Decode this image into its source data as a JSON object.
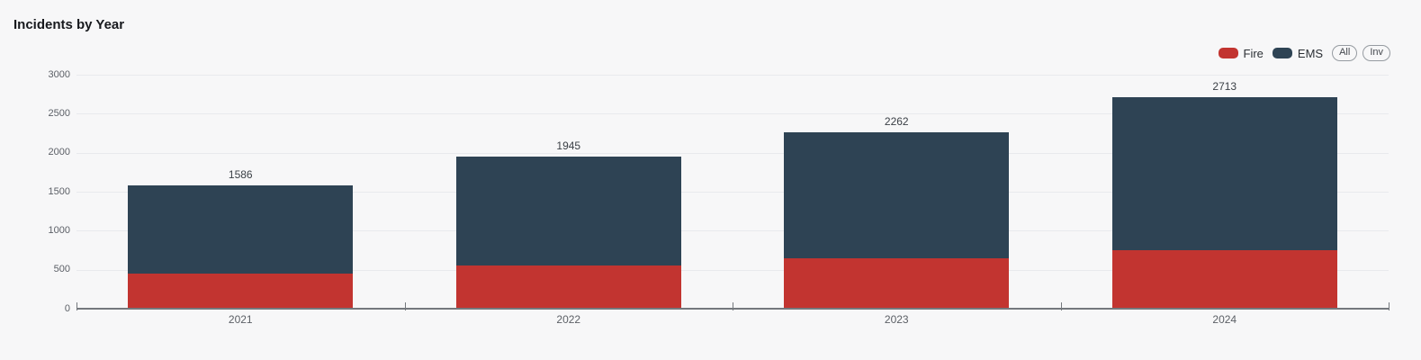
{
  "title": "Incidents by Year",
  "legend": {
    "items": [
      {
        "label": "Fire",
        "color": "#c23430"
      },
      {
        "label": "EMS",
        "color": "#2e4354"
      }
    ],
    "buttons": [
      {
        "label": "All"
      },
      {
        "label": "Inv"
      }
    ]
  },
  "chart_data": {
    "type": "bar",
    "stacked": true,
    "title": "Incidents by Year",
    "categories": [
      "2021",
      "2022",
      "2023",
      "2024"
    ],
    "series": [
      {
        "name": "Fire",
        "color": "#c23430",
        "values": [
          450,
          550,
          650,
          750
        ]
      },
      {
        "name": "EMS",
        "color": "#2e4354",
        "values": [
          1136,
          1395,
          1612,
          1963
        ]
      }
    ],
    "totals": [
      1586,
      1945,
      2262,
      2713
    ],
    "ylim": [
      0,
      3000
    ],
    "yticks": [
      0,
      500,
      1000,
      1500,
      2000,
      2500,
      3000
    ],
    "grid": true,
    "legend_position": "top-right"
  }
}
